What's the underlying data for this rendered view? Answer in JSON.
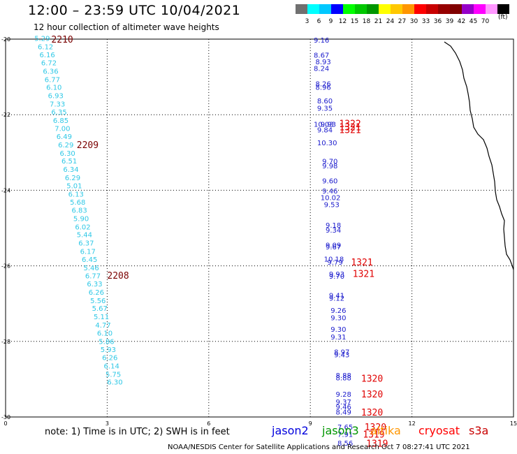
{
  "header": {
    "title": "12:00 – 23:59 UTC 10/04/2021",
    "subtitle": "12 hour collection of altimeter wave heights"
  },
  "color_scale": {
    "colors": [
      "#707070",
      "#00ffff",
      "#00c8ff",
      "#0000ff",
      "#00ff00",
      "#00c800",
      "#009600",
      "#ffff00",
      "#ffc800",
      "#ff9600",
      "#ff0000",
      "#c80000",
      "#960000",
      "#800000",
      "#9600c8",
      "#ff00ff",
      "#ff96ff",
      "#000000"
    ],
    "labels": [
      "3",
      "6",
      "9",
      "12",
      "15",
      "18",
      "21",
      "24",
      "27",
      "30",
      "33",
      "36",
      "39",
      "42",
      "45",
      "70"
    ],
    "unit": "(ft)"
  },
  "chart_data": {
    "type": "scatter",
    "xlim": [
      0,
      15
    ],
    "ylim": [
      -30,
      -20
    ],
    "x_ticks": [
      "0",
      "3",
      "6",
      "9",
      "12",
      "15"
    ],
    "y_ticks": [
      "-20",
      "-22",
      "-24",
      "-26",
      "-28",
      "-30"
    ],
    "grid": true,
    "series": [
      {
        "color": "#2fc8e6",
        "points": [
          {
            "x": 0.85,
            "y": -19.97,
            "label": "5.29"
          },
          {
            "x": 0.95,
            "y": -20.19,
            "label": "6.12"
          },
          {
            "x": 1.0,
            "y": -20.41,
            "label": "6.16"
          },
          {
            "x": 1.05,
            "y": -20.62,
            "label": "6.72"
          },
          {
            "x": 1.1,
            "y": -20.84,
            "label": "6.36"
          },
          {
            "x": 1.15,
            "y": -21.06,
            "label": "6.77"
          },
          {
            "x": 1.2,
            "y": -21.27,
            "label": "6.10"
          },
          {
            "x": 1.25,
            "y": -21.49,
            "label": "6.93"
          },
          {
            "x": 1.3,
            "y": -21.71,
            "label": "7.33"
          },
          {
            "x": 1.35,
            "y": -21.92,
            "label": "6.35"
          },
          {
            "x": 1.4,
            "y": -22.14,
            "label": "6.85"
          },
          {
            "x": 1.45,
            "y": -22.36,
            "label": "7.00"
          },
          {
            "x": 1.5,
            "y": -22.57,
            "label": "6.49"
          },
          {
            "x": 1.55,
            "y": -22.79,
            "label": "6.29"
          },
          {
            "x": 1.6,
            "y": -23.01,
            "label": "6.30"
          },
          {
            "x": 1.65,
            "y": -23.22,
            "label": "6.51"
          },
          {
            "x": 1.7,
            "y": -23.44,
            "label": "6.34"
          },
          {
            "x": 1.75,
            "y": -23.66,
            "label": "6.29"
          },
          {
            "x": 1.8,
            "y": -23.87,
            "label": "5.01"
          },
          {
            "x": 1.85,
            "y": -24.09,
            "label": "6.13"
          },
          {
            "x": 1.9,
            "y": -24.31,
            "label": "5.68"
          },
          {
            "x": 1.95,
            "y": -24.52,
            "label": "6.83"
          },
          {
            "x": 2.0,
            "y": -24.74,
            "label": "5.90"
          },
          {
            "x": 2.05,
            "y": -24.96,
            "label": "6.02"
          },
          {
            "x": 2.1,
            "y": -25.17,
            "label": "5.44"
          },
          {
            "x": 2.15,
            "y": -25.39,
            "label": "6.37"
          },
          {
            "x": 2.2,
            "y": -25.61,
            "label": "6.17"
          },
          {
            "x": 2.25,
            "y": -25.82,
            "label": "6.45"
          },
          {
            "x": 2.3,
            "y": -26.04,
            "label": "5.46"
          },
          {
            "x": 2.35,
            "y": -26.26,
            "label": "6.77"
          },
          {
            "x": 2.4,
            "y": -26.47,
            "label": "6.33"
          },
          {
            "x": 2.45,
            "y": -26.69,
            "label": "6.26"
          },
          {
            "x": 2.5,
            "y": -26.91,
            "label": "5.56"
          },
          {
            "x": 2.55,
            "y": -27.12,
            "label": "5.67"
          },
          {
            "x": 2.6,
            "y": -27.34,
            "label": "5.11"
          },
          {
            "x": 2.65,
            "y": -27.56,
            "label": "4.77"
          },
          {
            "x": 2.7,
            "y": -27.77,
            "label": "6.10"
          },
          {
            "x": 2.75,
            "y": -27.99,
            "label": "5.86"
          },
          {
            "x": 2.8,
            "y": -28.21,
            "label": "5.93"
          },
          {
            "x": 2.85,
            "y": -28.42,
            "label": "6.26"
          },
          {
            "x": 2.9,
            "y": -28.64,
            "label": "6.14"
          },
          {
            "x": 2.95,
            "y": -28.86,
            "label": "5.75"
          },
          {
            "x": 3.0,
            "y": -29.07,
            "label": "6.30"
          }
        ]
      },
      {
        "color": "#1a1acc",
        "points": [
          {
            "x": 9.1,
            "y": -20.02,
            "label": "9.16"
          },
          {
            "x": 9.1,
            "y": -20.42,
            "label": "8.67"
          },
          {
            "x": 9.15,
            "y": -20.59,
            "label": "8.93"
          },
          {
            "x": 9.1,
            "y": -20.77,
            "label": "8.24"
          },
          {
            "x": 9.15,
            "y": -21.17,
            "label": "8.26"
          },
          {
            "x": 9.15,
            "y": -21.27,
            "label": "8.96"
          },
          {
            "x": 9.2,
            "y": -21.63,
            "label": "8.60"
          },
          {
            "x": 9.2,
            "y": -21.82,
            "label": "9.35"
          },
          {
            "x": 9.1,
            "y": -22.25,
            "label": "10.03"
          },
          {
            "x": 9.3,
            "y": -22.25,
            "label": "9.93"
          },
          {
            "x": 9.2,
            "y": -22.39,
            "label": "9.84"
          },
          {
            "x": 9.2,
            "y": -22.74,
            "label": "10.30"
          },
          {
            "x": 9.35,
            "y": -23.23,
            "label": "9.70"
          },
          {
            "x": 9.35,
            "y": -23.35,
            "label": "9.98"
          },
          {
            "x": 9.35,
            "y": -23.74,
            "label": "9.60"
          },
          {
            "x": 9.35,
            "y": -24.01,
            "label": "9.46"
          },
          {
            "x": 9.3,
            "y": -24.19,
            "label": "10.02"
          },
          {
            "x": 9.4,
            "y": -24.37,
            "label": "9.53"
          },
          {
            "x": 9.45,
            "y": -24.92,
            "label": "9.18"
          },
          {
            "x": 9.45,
            "y": -25.05,
            "label": "9.34"
          },
          {
            "x": 9.45,
            "y": -25.44,
            "label": "9.09"
          },
          {
            "x": 9.45,
            "y": -25.49,
            "label": "9.67"
          },
          {
            "x": 9.4,
            "y": -25.81,
            "label": "10.18"
          },
          {
            "x": 9.5,
            "y": -25.9,
            "label": "9.79"
          },
          {
            "x": 9.55,
            "y": -26.21,
            "label": "9.93"
          },
          {
            "x": 9.55,
            "y": -26.27,
            "label": "9.70"
          },
          {
            "x": 9.55,
            "y": -26.77,
            "label": "9.41"
          },
          {
            "x": 9.55,
            "y": -26.85,
            "label": "9.12"
          },
          {
            "x": 9.6,
            "y": -27.17,
            "label": "9.26"
          },
          {
            "x": 9.6,
            "y": -27.37,
            "label": "9.30"
          },
          {
            "x": 9.6,
            "y": -27.67,
            "label": "9.30"
          },
          {
            "x": 9.6,
            "y": -27.87,
            "label": "9.31"
          },
          {
            "x": 9.7,
            "y": -28.27,
            "label": "8.97"
          },
          {
            "x": 9.7,
            "y": -28.35,
            "label": "9.43"
          },
          {
            "x": 9.75,
            "y": -28.89,
            "label": "8.88"
          },
          {
            "x": 9.75,
            "y": -28.96,
            "label": "8.88"
          },
          {
            "x": 9.75,
            "y": -29.39,
            "label": "9.28"
          },
          {
            "x": 9.75,
            "y": -29.59,
            "label": "9.37"
          },
          {
            "x": 9.75,
            "y": -29.72,
            "label": "9.46"
          },
          {
            "x": 9.75,
            "y": -29.86,
            "label": "8.49"
          },
          {
            "x": 9.8,
            "y": -30.26,
            "label": "7.65"
          },
          {
            "x": 9.8,
            "y": -30.45,
            "label": "7.91"
          },
          {
            "x": 9.8,
            "y": -30.68,
            "label": "8.56"
          }
        ]
      }
    ],
    "pass_labels": [
      {
        "x": 1.35,
        "y": -20.0,
        "text": "2210",
        "color": "#7a0000"
      },
      {
        "x": 2.1,
        "y": -22.79,
        "text": "2209",
        "color": "#7a0000"
      },
      {
        "x": 3.0,
        "y": -26.25,
        "text": "2208",
        "color": "#7a0000"
      },
      {
        "x": 9.85,
        "y": -22.23,
        "text": "1322",
        "color": "#e00000"
      },
      {
        "x": 9.85,
        "y": -22.32,
        "text": "1321",
        "color": "#e00000"
      },
      {
        "x": 9.85,
        "y": -22.39,
        "text": "1321",
        "color": "#e00000"
      },
      {
        "x": 10.2,
        "y": -25.9,
        "text": "1321",
        "color": "#e00000"
      },
      {
        "x": 10.25,
        "y": -26.2,
        "text": "1321",
        "color": "#e00000"
      },
      {
        "x": 10.5,
        "y": -28.97,
        "text": "1320",
        "color": "#e00000"
      },
      {
        "x": 10.5,
        "y": -29.39,
        "text": "1320",
        "color": "#e00000"
      },
      {
        "x": 10.5,
        "y": -29.87,
        "text": "1320",
        "color": "#e00000"
      },
      {
        "x": 10.6,
        "y": -30.26,
        "text": "1320",
        "color": "#e00000"
      },
      {
        "x": 10.55,
        "y": -30.45,
        "text": "1319",
        "color": "#e00000"
      },
      {
        "x": 10.65,
        "y": -30.69,
        "text": "1319",
        "color": "#e00000"
      }
    ]
  },
  "footer": {
    "note": "note:  1) Time is in UTC;  2) SWH is in feet",
    "legend": [
      {
        "label": "jason2",
        "color": "#0000dd"
      },
      {
        "label": "jason3",
        "color": "#009600"
      },
      {
        "label": "altika",
        "color": "#ff9600"
      },
      {
        "label": "cryosat",
        "color": "#ff0000"
      },
      {
        "label": "s3a",
        "color": "#c80000"
      }
    ],
    "credit": "NOAA/NESDIS Center for Satellite Applications and Research    Oct  7 08:27:41 UTC 2021"
  }
}
